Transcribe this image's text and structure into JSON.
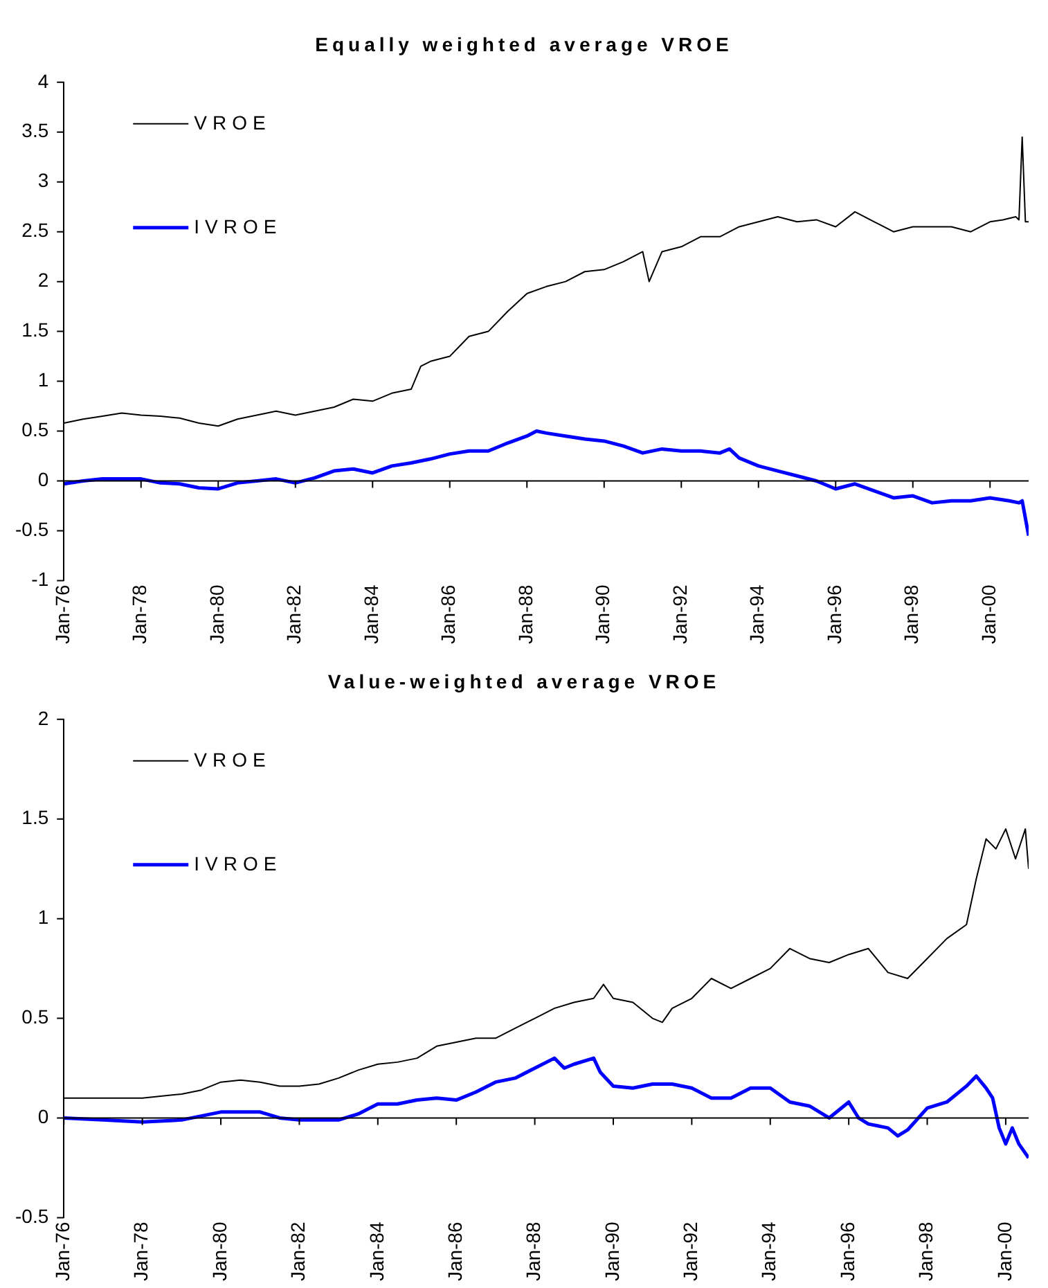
{
  "chart_data": [
    {
      "type": "line",
      "title": "Equally weighted average VROE",
      "xlim": [
        "1976-01",
        "2001-01"
      ],
      "ylim": [
        -1,
        4
      ],
      "yticks": [
        -1,
        -0.5,
        0,
        0.5,
        1,
        1.5,
        2,
        2.5,
        3,
        3.5,
        4
      ],
      "xticks": [
        {
          "value": "1976-01",
          "label": "Jan-76"
        },
        {
          "value": "1978-01",
          "label": "Jan-78"
        },
        {
          "value": "1980-01",
          "label": "Jan-80"
        },
        {
          "value": "1982-01",
          "label": "Jan-82"
        },
        {
          "value": "1984-01",
          "label": "Jan-84"
        },
        {
          "value": "1986-01",
          "label": "Jan-86"
        },
        {
          "value": "1988-01",
          "label": "Jan-88"
        },
        {
          "value": "1990-01",
          "label": "Jan-90"
        },
        {
          "value": "1992-01",
          "label": "Jan-92"
        },
        {
          "value": "1994-01",
          "label": "Jan-94"
        },
        {
          "value": "1996-01",
          "label": "Jan-96"
        },
        {
          "value": "1998-01",
          "label": "Jan-98"
        },
        {
          "value": "2000-01",
          "label": "Jan-00"
        }
      ],
      "legend": "top left",
      "marker": "none",
      "line_style": "solid",
      "series": [
        {
          "name": "VROE",
          "color": "#000000",
          "x": [
            "1976-01",
            "1976-07",
            "1977-01",
            "1977-07",
            "1978-01",
            "1978-07",
            "1979-01",
            "1979-07",
            "1980-01",
            "1980-07",
            "1981-01",
            "1981-07",
            "1982-01",
            "1982-07",
            "1983-01",
            "1983-07",
            "1984-01",
            "1984-07",
            "1985-01",
            "1985-04",
            "1985-07",
            "1986-01",
            "1986-07",
            "1987-01",
            "1987-07",
            "1988-01",
            "1988-07",
            "1989-01",
            "1989-07",
            "1990-01",
            "1990-07",
            "1991-01",
            "1991-03",
            "1991-07",
            "1992-01",
            "1992-07",
            "1993-01",
            "1993-07",
            "1994-01",
            "1994-07",
            "1995-01",
            "1995-07",
            "1996-01",
            "1996-07",
            "1997-01",
            "1997-07",
            "1998-01",
            "1998-07",
            "1999-01",
            "1999-07",
            "2000-01",
            "2000-05",
            "2000-09",
            "2000-10",
            "2000-11",
            "2000-12",
            "2001-01"
          ],
          "values": [
            0.58,
            0.62,
            0.65,
            0.68,
            0.66,
            0.65,
            0.63,
            0.58,
            0.55,
            0.62,
            0.66,
            0.7,
            0.66,
            0.7,
            0.74,
            0.82,
            0.8,
            0.88,
            0.92,
            1.15,
            1.2,
            1.25,
            1.45,
            1.5,
            1.7,
            1.88,
            1.95,
            2.0,
            2.1,
            2.12,
            2.2,
            2.3,
            2.0,
            2.3,
            2.35,
            2.45,
            2.45,
            2.55,
            2.6,
            2.65,
            2.6,
            2.62,
            2.55,
            2.7,
            2.6,
            2.5,
            2.55,
            2.55,
            2.55,
            2.5,
            2.6,
            2.62,
            2.65,
            2.62,
            3.45,
            2.6,
            2.6
          ]
        },
        {
          "name": "IVROE",
          "color": "#0000ff",
          "x": [
            "1976-01",
            "1976-07",
            "1977-01",
            "1978-01",
            "1978-07",
            "1979-01",
            "1979-07",
            "1980-01",
            "1980-07",
            "1981-01",
            "1981-07",
            "1982-01",
            "1982-07",
            "1983-01",
            "1983-07",
            "1984-01",
            "1984-07",
            "1985-01",
            "1985-07",
            "1986-01",
            "1986-07",
            "1987-01",
            "1987-07",
            "1988-01",
            "1988-04",
            "1988-07",
            "1989-01",
            "1989-07",
            "1990-01",
            "1990-07",
            "1991-01",
            "1991-07",
            "1992-01",
            "1992-07",
            "1993-01",
            "1993-04",
            "1993-07",
            "1994-01",
            "1994-07",
            "1995-01",
            "1995-07",
            "1996-01",
            "1996-07",
            "1997-01",
            "1997-07",
            "1998-01",
            "1998-07",
            "1999-01",
            "1999-07",
            "2000-01",
            "2000-07",
            "2000-10",
            "2000-11",
            "2001-01"
          ],
          "values": [
            -0.03,
            0,
            0.02,
            0.02,
            -0.02,
            -0.03,
            -0.07,
            -0.08,
            -0.02,
            0,
            0.02,
            -0.02,
            0.03,
            0.1,
            0.12,
            0.08,
            0.15,
            0.18,
            0.22,
            0.27,
            0.3,
            0.3,
            0.38,
            0.45,
            0.5,
            0.48,
            0.45,
            0.42,
            0.4,
            0.35,
            0.28,
            0.32,
            0.3,
            0.3,
            0.28,
            0.32,
            0.23,
            0.15,
            0.1,
            0.05,
            0,
            -0.08,
            -0.03,
            -0.1,
            -0.17,
            -0.15,
            -0.22,
            -0.2,
            -0.2,
            -0.17,
            -0.2,
            -0.22,
            -0.2,
            -0.55
          ]
        }
      ]
    },
    {
      "type": "line",
      "title": "Value-weighted average VROE",
      "xlim": [
        "1976-01",
        "2000-08"
      ],
      "ylim": [
        -0.5,
        2
      ],
      "yticks": [
        -0.5,
        0,
        0.5,
        1,
        1.5,
        2
      ],
      "xticks": [
        {
          "value": "1976-01",
          "label": "Jan-76"
        },
        {
          "value": "1978-01",
          "label": "Jan-78"
        },
        {
          "value": "1980-01",
          "label": "Jan-80"
        },
        {
          "value": "1982-01",
          "label": "Jan-82"
        },
        {
          "value": "1984-01",
          "label": "Jan-84"
        },
        {
          "value": "1986-01",
          "label": "Jan-86"
        },
        {
          "value": "1988-01",
          "label": "Jan-88"
        },
        {
          "value": "1990-01",
          "label": "Jan-90"
        },
        {
          "value": "1992-01",
          "label": "Jan-92"
        },
        {
          "value": "1994-01",
          "label": "Jan-94"
        },
        {
          "value": "1996-01",
          "label": "Jan-96"
        },
        {
          "value": "1998-01",
          "label": "Jan-98"
        },
        {
          "value": "2000-01",
          "label": "Jan-00"
        }
      ],
      "legend": "top left",
      "marker": "none",
      "line_style": "solid",
      "series": [
        {
          "name": "VROE",
          "color": "#000000",
          "x": [
            "1976-01",
            "1978-01",
            "1979-01",
            "1979-07",
            "1980-01",
            "1980-07",
            "1981-01",
            "1981-07",
            "1982-01",
            "1982-07",
            "1983-01",
            "1983-07",
            "1984-01",
            "1984-07",
            "1985-01",
            "1985-07",
            "1986-01",
            "1986-07",
            "1987-01",
            "1987-07",
            "1988-01",
            "1988-07",
            "1989-01",
            "1989-07",
            "1989-10",
            "1990-01",
            "1990-07",
            "1991-01",
            "1991-04",
            "1991-07",
            "1992-01",
            "1992-07",
            "1993-01",
            "1993-07",
            "1994-01",
            "1994-07",
            "1995-01",
            "1995-07",
            "1996-01",
            "1996-07",
            "1997-01",
            "1997-07",
            "1998-01",
            "1998-07",
            "1999-01",
            "1999-04",
            "1999-07",
            "1999-10",
            "2000-01",
            "2000-04",
            "2000-07",
            "2000-08"
          ],
          "values": [
            0.1,
            0.1,
            0.12,
            0.14,
            0.18,
            0.19,
            0.18,
            0.16,
            0.16,
            0.17,
            0.2,
            0.24,
            0.27,
            0.28,
            0.3,
            0.36,
            0.38,
            0.4,
            0.4,
            0.45,
            0.5,
            0.55,
            0.58,
            0.6,
            0.67,
            0.6,
            0.58,
            0.5,
            0.48,
            0.55,
            0.6,
            0.7,
            0.65,
            0.7,
            0.75,
            0.85,
            0.8,
            0.78,
            0.82,
            0.85,
            0.73,
            0.7,
            0.8,
            0.9,
            0.97,
            1.2,
            1.4,
            1.35,
            1.45,
            1.3,
            1.45,
            1.25
          ]
        },
        {
          "name": "IVROE",
          "color": "#0000ff",
          "x": [
            "1976-01",
            "1977-01",
            "1978-01",
            "1979-01",
            "1979-07",
            "1980-01",
            "1980-07",
            "1981-01",
            "1981-07",
            "1982-01",
            "1983-01",
            "1983-07",
            "1984-01",
            "1984-07",
            "1985-01",
            "1985-07",
            "1986-01",
            "1986-07",
            "1987-01",
            "1987-07",
            "1988-01",
            "1988-07",
            "1988-10",
            "1989-01",
            "1989-07",
            "1989-09",
            "1990-01",
            "1990-07",
            "1991-01",
            "1991-07",
            "1992-01",
            "1992-07",
            "1993-01",
            "1993-07",
            "1994-01",
            "1994-07",
            "1995-01",
            "1995-07",
            "1996-01",
            "1996-04",
            "1996-07",
            "1997-01",
            "1997-04",
            "1997-07",
            "1998-01",
            "1998-07",
            "1999-01",
            "1999-04",
            "1999-07",
            "1999-09",
            "1999-11",
            "2000-01",
            "2000-03",
            "2000-05",
            "2000-08"
          ],
          "values": [
            0,
            -0.01,
            -0.02,
            -0.01,
            0.01,
            0.03,
            0.03,
            0.03,
            0,
            -0.01,
            -0.01,
            0.02,
            0.07,
            0.07,
            0.09,
            0.1,
            0.09,
            0.13,
            0.18,
            0.2,
            0.25,
            0.3,
            0.25,
            0.27,
            0.3,
            0.23,
            0.16,
            0.15,
            0.17,
            0.17,
            0.15,
            0.1,
            0.1,
            0.15,
            0.15,
            0.08,
            0.06,
            0,
            0.08,
            0,
            -0.03,
            -0.05,
            -0.09,
            -0.06,
            0.05,
            0.08,
            0.16,
            0.21,
            0.15,
            0.1,
            -0.05,
            -0.13,
            -0.05,
            -0.13,
            -0.2
          ]
        }
      ]
    }
  ]
}
